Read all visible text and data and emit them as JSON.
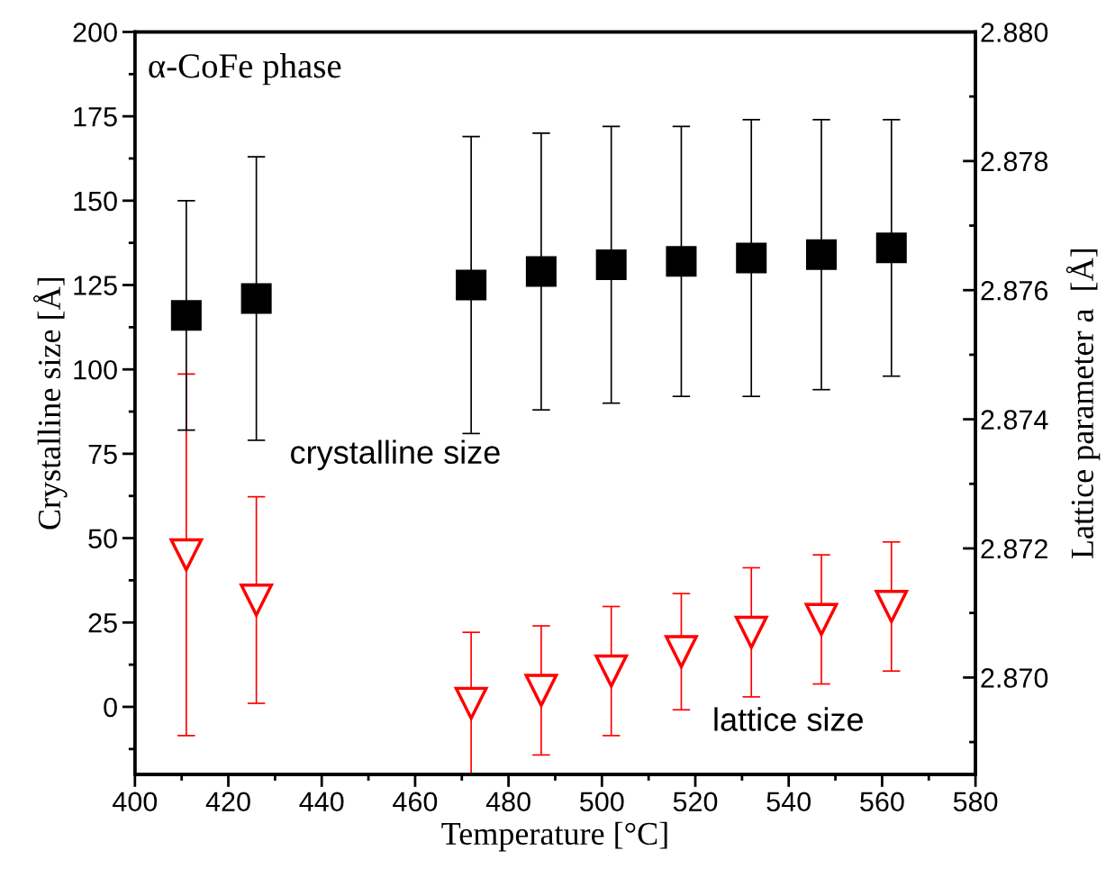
{
  "chart_data": {
    "type": "scatter",
    "xlabel": "Temperature [°C]",
    "ylabel": "Crystalline size [Å]",
    "y2label": "Lattice parameter a  [Å]",
    "annotations": [
      "α-CoFe phase",
      "crystalline size",
      "lattice size"
    ],
    "xlim": [
      400,
      580
    ],
    "xticks": [
      400,
      {
        "value": 410,
        "label": null
      },
      420,
      {
        "value": 430,
        "label": null
      },
      440,
      {
        "value": 450,
        "label": null
      },
      460,
      {
        "value": 470,
        "label": null
      },
      480,
      {
        "value": 490,
        "label": null
      },
      500,
      {
        "value": 510,
        "label": null
      },
      520,
      {
        "value": 530,
        "label": null
      },
      540,
      {
        "value": 550,
        "label": null
      },
      560,
      {
        "value": 570,
        "label": null
      },
      580
    ],
    "ylim": [
      -20,
      200
    ],
    "yticks": [
      {
        "value": -12.5,
        "label": null
      },
      0,
      {
        "value": 12.5,
        "label": null
      },
      25,
      {
        "value": 37.5,
        "label": null
      },
      50,
      {
        "value": 62.5,
        "label": null
      },
      75,
      {
        "value": 87.5,
        "label": null
      },
      100,
      {
        "value": 112.5,
        "label": null
      },
      125,
      {
        "value": 137.5,
        "label": null
      },
      150,
      {
        "value": 162.5,
        "label": null
      },
      175,
      {
        "value": 187.5,
        "label": null
      },
      200
    ],
    "y2lim": [
      2.8685,
      2.88
    ],
    "y2ticks": [
      {
        "value": 2.869,
        "label": null
      },
      {
        "value": 2.87,
        "label": "2.870"
      },
      {
        "value": 2.871,
        "label": null
      },
      {
        "value": 2.872,
        "label": "2.872"
      },
      {
        "value": 2.873,
        "label": null
      },
      {
        "value": 2.874,
        "label": "2.874"
      },
      {
        "value": 2.875,
        "label": null
      },
      {
        "value": 2.876,
        "label": "2.876"
      },
      {
        "value": 2.877,
        "label": null
      },
      {
        "value": 2.878,
        "label": "2.878"
      },
      {
        "value": 2.879,
        "label": null
      },
      {
        "value": 2.88,
        "label": "2.880"
      }
    ],
    "grid": false,
    "legend": false,
    "series": [
      {
        "color": "#000000",
        "marker": "square",
        "x": [
          411,
          426,
          472,
          487,
          502,
          517,
          532,
          547,
          562
        ],
        "values": [
          116,
          121,
          125,
          129,
          131,
          132,
          133,
          134,
          136
        ],
        "errors": [
          34,
          42,
          44,
          41,
          41,
          40,
          41,
          40,
          38
        ]
      },
      {
        "color": "#ff0000",
        "marker": "triangle",
        "axis": "y2",
        "x": [
          411,
          426,
          472,
          487,
          502,
          517,
          532,
          547,
          562
        ],
        "values": [
          2.8719,
          2.8712,
          2.8696,
          2.8698,
          2.8701,
          2.8704,
          2.8707,
          2.8709,
          2.8711
        ],
        "errors": [
          0.0028,
          0.0016,
          0.0011,
          0.001,
          0.001,
          0.0009,
          0.001,
          0.001,
          0.001
        ]
      }
    ]
  }
}
